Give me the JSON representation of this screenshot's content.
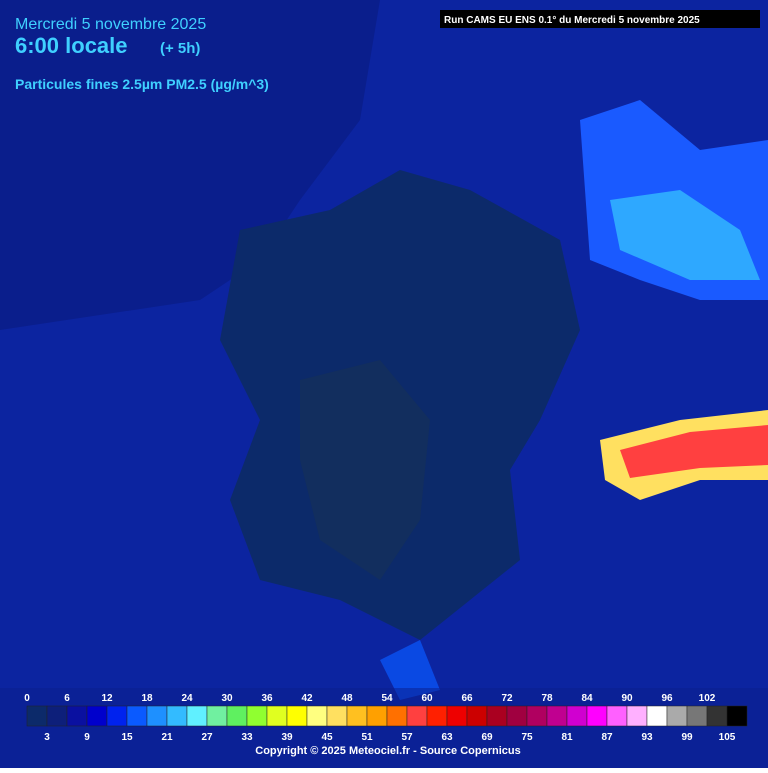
{
  "header": {
    "date": "Mercredi 5 novembre 2025",
    "time": "6:00 locale",
    "offset": "(+ 5h)",
    "variable": "Particules fines 2.5µm PM2.5 (µg/m^3)",
    "run": "Run CAMS EU ENS 0.1° du Mercredi 5 novembre 2025"
  },
  "legend": {
    "ticks_top": [
      0,
      6,
      12,
      18,
      24,
      30,
      36,
      42,
      48,
      54,
      60,
      66,
      72,
      78,
      84,
      90,
      96,
      102
    ],
    "ticks_bottom": [
      3,
      9,
      15,
      21,
      27,
      33,
      39,
      45,
      51,
      57,
      63,
      69,
      75,
      81,
      87,
      93,
      99,
      105
    ],
    "colors": [
      "#0c2a6a",
      "#0d1f7a",
      "#0a10a0",
      "#0000cc",
      "#0022ee",
      "#0a5aff",
      "#1e90ff",
      "#33bbff",
      "#60f0ff",
      "#70f0a0",
      "#5ff060",
      "#90ff30",
      "#e0ff20",
      "#ffff00",
      "#ffff80",
      "#ffe060",
      "#ffc020",
      "#ffa000",
      "#ff7000",
      "#ff4040",
      "#ff2000",
      "#ee0000",
      "#cc0000",
      "#aa0020",
      "#a00040",
      "#b00060",
      "#c00090",
      "#d000d0",
      "#ff00ff",
      "#ff60ff",
      "#ffb0ff",
      "#ffffff",
      "#aaaaaa",
      "#777777",
      "#333333",
      "#000000"
    ]
  },
  "footer": {
    "copyright": "Copyright © 2025 Meteociel.fr - Source Copernicus"
  }
}
